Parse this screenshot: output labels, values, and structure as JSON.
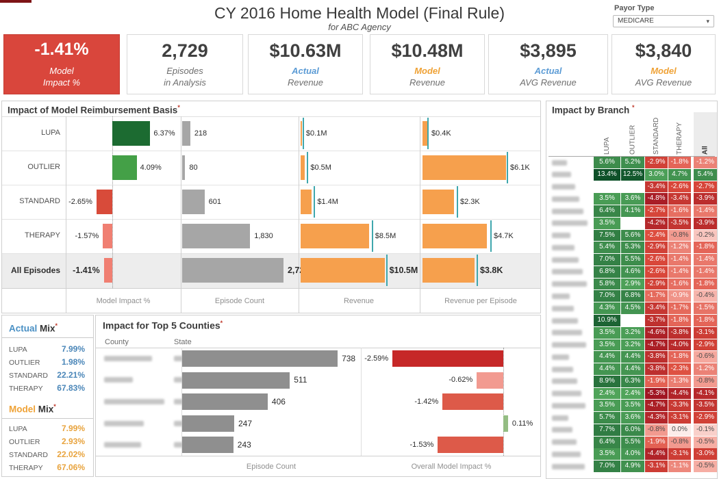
{
  "header": {
    "title": "CY 2016 Home Health Model (Final Rule)",
    "subtitle": "for ABC Agency",
    "payor_label": "Payor Type",
    "payor_value": "MEDICARE"
  },
  "kpis": [
    {
      "value": "-1.41%",
      "line1": "Model",
      "line2": "Impact %"
    },
    {
      "value": "2,729",
      "line1": "Episodes",
      "line2": "in Analysis"
    },
    {
      "value": "$10.63M",
      "line1": "Actual",
      "line2": "Revenue"
    },
    {
      "value": "$10.48M",
      "line1": "Model",
      "line2": "Revenue"
    },
    {
      "value": "$3,895",
      "line1": "Actual",
      "line2": "AVG Revenue"
    },
    {
      "value": "$3,840",
      "line1": "Model",
      "line2": "AVG Revenue"
    }
  ],
  "reimbursement": {
    "title": "Impact of Model Reimbursement Basis",
    "rows": [
      "LUPA",
      "OUTLIER",
      "STANDARD",
      "THERAPY",
      "All Episodes"
    ],
    "columns": [
      "Model Impact %",
      "Episode Count",
      "Revenue",
      "Revenue per Episode"
    ]
  },
  "branch": {
    "title": "Impact by Branch",
    "columns": [
      "LUPA",
      "OUTLIER",
      "STANDARD",
      "THERAPY",
      "All"
    ],
    "row_labels_redacted": true
  },
  "mix": {
    "actual": {
      "accent": "Actual",
      "word": "Mix",
      "rows": [
        [
          "LUPA",
          "7.99%"
        ],
        [
          "OUTLIER",
          "1.98%"
        ],
        [
          "STANDARD",
          "22.21%"
        ],
        [
          "THERAPY",
          "67.83%"
        ]
      ]
    },
    "model": {
      "accent": "Model",
      "word": "Mix",
      "rows": [
        [
          "LUPA",
          "7.99%"
        ],
        [
          "OUTLIER",
          "2.93%"
        ],
        [
          "STANDARD",
          "22.02%"
        ],
        [
          "THERAPY",
          "67.06%"
        ]
      ]
    }
  },
  "counties": {
    "title": "Impact for Top 5 Counties",
    "col_county": "County",
    "col_state": "State",
    "labels_redacted": true,
    "axis_count": "Episode Count",
    "axis_impact": "Overall Model Impact %"
  },
  "colors": {
    "accent_blue": "#5b9bd5",
    "accent_orange": "#efa236",
    "kpi_red": "#d9463c",
    "bar_gray": "#a6a6a6",
    "bar_orange": "#f6a04d",
    "tick_teal": "#3fa7ad",
    "county_gray": "#8f8f8f",
    "asterisk_red": "#c0392b"
  },
  "chart_data": [
    {
      "id": "model_impact",
      "type": "bar",
      "orientation": "horizontal",
      "title": "Model Impact %",
      "categories": [
        "LUPA",
        "OUTLIER",
        "STANDARD",
        "THERAPY",
        "All Episodes"
      ],
      "values": [
        6.37,
        4.09,
        -2.65,
        -1.57,
        -1.41
      ],
      "labels": [
        "6.37%",
        "4.09%",
        "-2.65%",
        "-1.57%",
        "-1.41%"
      ],
      "colors": [
        "#1c6b31",
        "#44a047",
        "#d84b3a",
        "#f07f72",
        "#f07f72"
      ]
    },
    {
      "id": "episode_count",
      "type": "bar",
      "orientation": "horizontal",
      "title": "Episode Count",
      "categories": [
        "LUPA",
        "OUTLIER",
        "STANDARD",
        "THERAPY",
        "All Episodes"
      ],
      "values": [
        218,
        80,
        601,
        1830,
        2729
      ],
      "labels": [
        "218",
        "80",
        "601",
        "1,830",
        "2,729"
      ]
    },
    {
      "id": "revenue",
      "type": "bar",
      "orientation": "horizontal",
      "title": "Revenue",
      "unit": "$M",
      "categories": [
        "LUPA",
        "OUTLIER",
        "STANDARD",
        "THERAPY",
        "All Episodes"
      ],
      "values": [
        0.1,
        0.5,
        1.4,
        8.5,
        10.5
      ],
      "labels": [
        "$0.1M",
        "$0.5M",
        "$1.4M",
        "$8.5M",
        "$10.5M"
      ],
      "actual_ticks": [
        0.25,
        0.8,
        1.65,
        8.85,
        10.63
      ]
    },
    {
      "id": "revenue_per_episode",
      "type": "bar",
      "orientation": "horizontal",
      "title": "Revenue per Episode",
      "unit": "$K",
      "categories": [
        "LUPA",
        "OUTLIER",
        "STANDARD",
        "THERAPY",
        "All Episodes"
      ],
      "values": [
        0.4,
        6.1,
        2.3,
        4.7,
        3.8
      ],
      "labels": [
        "$0.4K",
        "$6.1K",
        "$2.3K",
        "$4.7K",
        "$3.8K"
      ],
      "actual_ticks": [
        0.35,
        6.15,
        2.5,
        4.95,
        3.95
      ]
    },
    {
      "id": "impact_by_branch",
      "type": "heatmap",
      "columns": [
        "LUPA",
        "OUTLIER",
        "STANDARD",
        "THERAPY",
        "All"
      ],
      "row_labels": "redacted",
      "rows": [
        [
          5.6,
          5.2,
          -2.9,
          -1.8,
          -1.2
        ],
        [
          13.4,
          12.5,
          3.0,
          4.7,
          5.4
        ],
        [
          null,
          null,
          -3.4,
          -2.6,
          -2.7
        ],
        [
          3.5,
          3.6,
          -4.8,
          -3.4,
          -3.9
        ],
        [
          6.4,
          4.1,
          -2.7,
          -1.6,
          -1.4
        ],
        [
          3.5,
          null,
          -4.2,
          -3.5,
          -3.9
        ],
        [
          7.5,
          5.6,
          -2.4,
          -0.8,
          -0.2
        ],
        [
          5.4,
          5.3,
          -2.9,
          -1.2,
          -1.8
        ],
        [
          7.0,
          5.5,
          -2.6,
          -1.4,
          -1.4
        ],
        [
          6.8,
          4.6,
          -2.6,
          -1.4,
          -1.4
        ],
        [
          5.8,
          2.9,
          -2.9,
          -1.6,
          -1.8
        ],
        [
          7.0,
          6.8,
          -1.7,
          -0.9,
          -0.4
        ],
        [
          4.3,
          4.5,
          -3.4,
          -1.7,
          -1.5
        ],
        [
          10.9,
          null,
          -3.7,
          -1.8,
          -1.8
        ],
        [
          3.5,
          3.2,
          -4.6,
          -3.8,
          -3.1
        ],
        [
          3.5,
          3.2,
          -4.7,
          -4.0,
          -2.9
        ],
        [
          4.4,
          4.4,
          -3.8,
          -1.8,
          -0.6
        ],
        [
          4.4,
          4.4,
          -3.8,
          -2.3,
          -1.2
        ],
        [
          8.9,
          6.3,
          -1.9,
          -1.3,
          -0.8
        ],
        [
          2.4,
          2.4,
          -5.3,
          -4.4,
          -4.1
        ],
        [
          3.5,
          3.5,
          -4.7,
          -3.3,
          -3.5
        ],
        [
          5.7,
          3.6,
          -4.3,
          -3.1,
          -2.9
        ],
        [
          7.7,
          6.0,
          -0.8,
          0.0,
          -0.1
        ],
        [
          6.4,
          5.5,
          -1.9,
          -0.8,
          -0.5
        ],
        [
          3.5,
          4.0,
          -4.4,
          -3.1,
          -3.0
        ],
        [
          7.0,
          4.9,
          -3.1,
          -1.1,
          -0.5
        ]
      ]
    },
    {
      "id": "county_episode_count",
      "type": "bar",
      "orientation": "horizontal",
      "title": "Episode Count",
      "categories": "redacted",
      "values": [
        738,
        511,
        406,
        247,
        243
      ],
      "labels": [
        "738",
        "511",
        "406",
        "247",
        "243"
      ]
    },
    {
      "id": "county_model_impact",
      "type": "bar",
      "orientation": "horizontal",
      "title": "Overall Model Impact %",
      "categories": "redacted",
      "values": [
        -2.59,
        -0.62,
        -1.42,
        0.11,
        -1.53
      ],
      "labels": [
        "-2.59%",
        "-0.62%",
        "-1.42%",
        "0.11%",
        "-1.53%"
      ],
      "colors": [
        "#c62828",
        "#f29a90",
        "#dd5a49",
        "#94bd83",
        "#dd5a49"
      ]
    }
  ]
}
